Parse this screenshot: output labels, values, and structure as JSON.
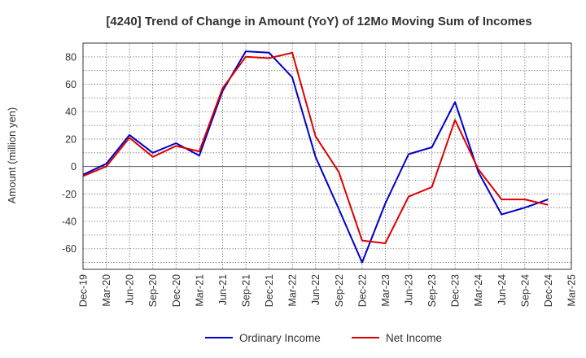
{
  "chart_data": {
    "type": "line",
    "title": "[4240]  Trend of Change in Amount (YoY) of 12Mo Moving Sum of Incomes",
    "xlabel": "",
    "ylabel": "Amount (million yen)",
    "x": [
      "Dec-19",
      "Mar-20",
      "Jun-20",
      "Sep-20",
      "Dec-20",
      "Mar-21",
      "Jun-21",
      "Sep-21",
      "Dec-21",
      "Mar-22",
      "Jun-22",
      "Sep-22",
      "Dec-22",
      "Mar-23",
      "Jun-23",
      "Sep-23",
      "Dec-23",
      "Mar-24",
      "Jun-24",
      "Sep-24",
      "Dec-24",
      "Mar-25"
    ],
    "ylim": [
      -75,
      90
    ],
    "yticks": [
      80,
      60,
      40,
      20,
      0,
      -20,
      -40,
      -60
    ],
    "ytick_labels": [
      "80",
      "60",
      "40",
      "20",
      "0",
      "-20",
      "-40",
      "-60"
    ],
    "grid": true,
    "legend_position": "bottom",
    "series": [
      {
        "name": "Ordinary Income",
        "color": "#0000cc",
        "values": [
          -6,
          2,
          23,
          10,
          17,
          8,
          55,
          84,
          83,
          65,
          7,
          -31,
          -70,
          -27,
          9,
          14,
          47,
          -4,
          -35,
          -30,
          -24,
          null
        ]
      },
      {
        "name": "Net Income",
        "color": "#dd0000",
        "values": [
          -7,
          0,
          21,
          7,
          15,
          11,
          57,
          80,
          79,
          83,
          22,
          -4,
          -54,
          -56,
          -22,
          -15,
          34,
          -2,
          -24,
          -24,
          -28,
          null
        ]
      }
    ]
  }
}
